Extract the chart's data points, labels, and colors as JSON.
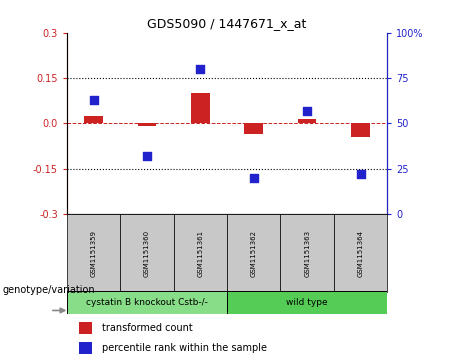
{
  "title": "GDS5090 / 1447671_x_at",
  "samples": [
    "GSM1151359",
    "GSM1151360",
    "GSM1151361",
    "GSM1151362",
    "GSM1151363",
    "GSM1151364"
  ],
  "transformed_counts": [
    0.025,
    -0.01,
    0.1,
    -0.035,
    0.015,
    -0.045
  ],
  "percentile_ranks": [
    63,
    32,
    80,
    20,
    57,
    22
  ],
  "group1_name": "cystatin B knockout Cstb-/-",
  "group2_name": "wild type",
  "group1_samples": 3,
  "group2_samples": 3,
  "ylim_left": [
    -0.3,
    0.3
  ],
  "ylim_right": [
    0,
    100
  ],
  "yticks_left": [
    -0.3,
    -0.15,
    0.0,
    0.15,
    0.3
  ],
  "yticks_right": [
    0,
    25,
    50,
    75,
    100
  ],
  "hline_y": 0.0,
  "dotted_lines": [
    -0.15,
    0.15
  ],
  "bar_color": "#CC2222",
  "dot_color": "#2222CC",
  "bar_width": 0.35,
  "dot_size": 35,
  "legend_labels": [
    "transformed count",
    "percentile rank within the sample"
  ],
  "legend_colors": [
    "#CC2222",
    "#2222CC"
  ],
  "genotype_label": "genotype/variation",
  "sample_box_color": "#C8C8C8",
  "group1_color": "#88DD88",
  "group2_color": "#55CC55",
  "title_fontsize": 9,
  "tick_fontsize": 7,
  "sample_fontsize": 5,
  "group_fontsize": 6.5,
  "legend_fontsize": 7,
  "geno_fontsize": 7
}
